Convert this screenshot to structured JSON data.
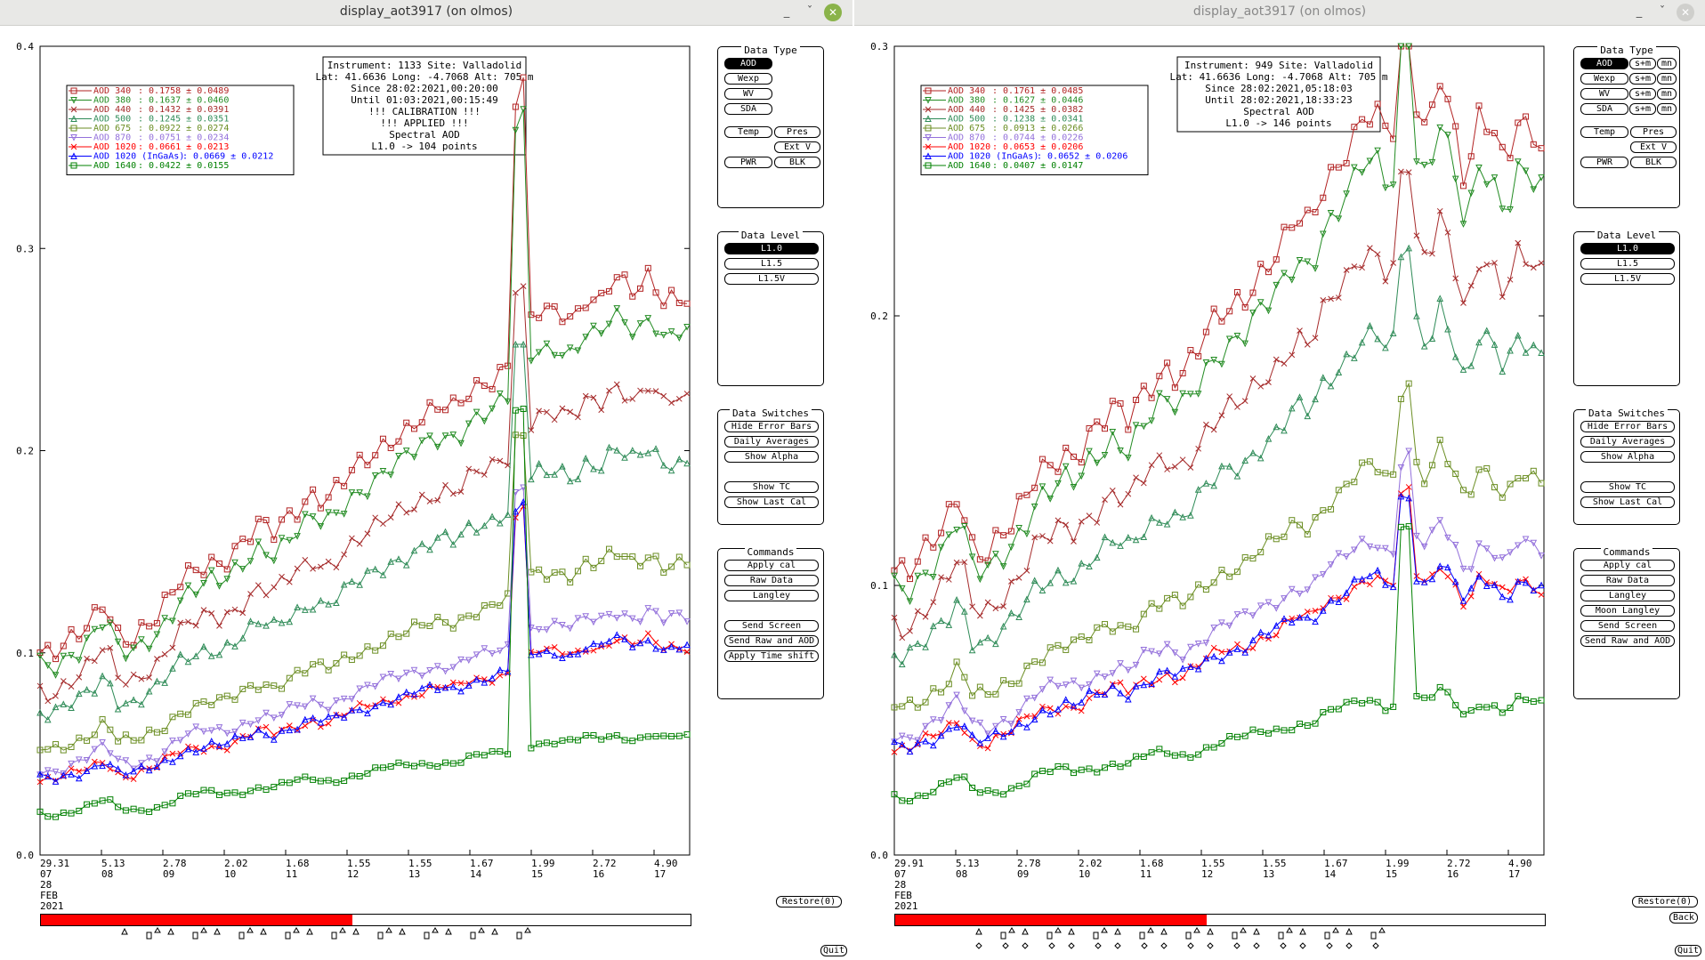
{
  "windows": [
    {
      "title": "display_aot3917 (on olmos)",
      "chart_data": {
        "type": "line",
        "ylim": [
          0.0,
          0.4
        ],
        "yticks": [
          "0.0",
          "0.1",
          "0.2",
          "0.3",
          "0.4"
        ],
        "xticks": [
          {
            "top": "29.31",
            "bottom": "07"
          },
          {
            "top": "5.13",
            "bottom": "08"
          },
          {
            "top": "2.78",
            "bottom": "09"
          },
          {
            "top": "2.02",
            "bottom": "10"
          },
          {
            "top": "1.68",
            "bottom": "11"
          },
          {
            "top": "1.55",
            "bottom": "12"
          },
          {
            "top": "1.55",
            "bottom": "13"
          },
          {
            "top": "1.67",
            "bottom": "14"
          },
          {
            "top": "1.99",
            "bottom": "15"
          },
          {
            "top": "2.72",
            "bottom": "16"
          },
          {
            "top": "4.90",
            "bottom": "17"
          }
        ],
        "date_label": [
          "28",
          "FEB",
          "2021"
        ],
        "info_lines": [
          "Instrument: 1133 Site: Valladolid",
          "Lat: 41.6636 Long: -4.7068 Alt: 705 m",
          "Since 28:02:2021,00:20:00",
          "Until 01:03:2021,00:15:49",
          "!!! CALIBRATION !!!",
          "!!!   APPLIED   !!!",
          "Spectral AOD",
          "L1.0 -> 104 points"
        ],
        "legend": [
          {
            "name": "AOD 340",
            "stat": ": 0.1758 ± 0.0489",
            "color": "#b22222"
          },
          {
            "name": "AOD 380",
            "stat": ": 0.1637 ± 0.0460",
            "color": "#228b22"
          },
          {
            "name": "AOD 440",
            "stat": ": 0.1432 ± 0.0391",
            "color": "#a52a2a"
          },
          {
            "name": "AOD 500",
            "stat": ": 0.1245 ± 0.0351",
            "color": "#2e8b57"
          },
          {
            "name": "AOD 675",
            "stat": ": 0.0922 ± 0.0274",
            "color": "#6b8e23"
          },
          {
            "name": "AOD 870",
            "stat": ": 0.0751 ± 0.0234",
            "color": "#9370db"
          },
          {
            "name": "AOD 1020",
            "stat": ": 0.0661 ± 0.0213",
            "color": "#ff0000"
          },
          {
            "name": "AOD 1020 (InGaAs)",
            "stat": ": 0.0669 ± 0.0212",
            "color": "#0000ff"
          },
          {
            "name": "AOD 1640",
            "stat": ": 0.0422 ± 0.0155",
            "color": "#008000"
          }
        ],
        "base_curve_x": [
          0,
          2,
          4,
          6,
          8,
          10,
          12,
          14,
          16,
          18,
          20,
          22,
          24,
          26,
          28,
          30,
          32,
          34,
          36,
          38,
          40,
          42,
          44,
          46,
          48,
          50,
          52,
          54,
          56,
          58,
          60,
          62,
          64,
          66,
          68,
          70,
          72,
          74,
          76,
          78,
          80,
          82,
          84,
          86,
          88,
          90,
          92,
          94,
          96,
          98,
          100
        ],
        "base_curve_y": [
          0.055,
          0.054,
          0.057,
          0.06,
          0.064,
          0.07,
          0.06,
          0.058,
          0.061,
          0.064,
          0.07,
          0.076,
          0.078,
          0.08,
          0.079,
          0.082,
          0.086,
          0.09,
          0.088,
          0.092,
          0.095,
          0.098,
          0.096,
          0.1,
          0.104,
          0.107,
          0.11,
          0.113,
          0.115,
          0.118,
          0.12,
          0.122,
          0.121,
          0.126,
          0.128,
          0.13,
          0.133,
          0.135,
          0.148,
          0.147,
          0.148,
          0.145,
          0.152,
          0.15,
          0.157,
          0.155,
          0.152,
          0.158,
          0.15,
          0.153,
          0.151
        ],
        "spike_x": 74,
        "spike_extra": 0.13,
        "scale": [
          1.82,
          1.7,
          1.48,
          1.28,
          0.95,
          0.77,
          0.68,
          0.68,
          0.38
        ],
        "band_markers": [
          "square",
          "tri-down",
          "x",
          "tri-up",
          "square",
          "tri-down",
          "x",
          "tri-up",
          "square"
        ]
      },
      "data_type": {
        "title": "Data Type",
        "buttons": [
          "AOD",
          "Wexp",
          "WV",
          "SDA",
          "Temp",
          "Pres",
          "Ext V",
          "PWR",
          "BLK"
        ]
      },
      "data_level": {
        "title": "Data Level",
        "buttons": [
          "L1.0",
          "L1.5",
          "L1.5V"
        ]
      },
      "data_switches": {
        "title": "Data Switches",
        "buttons": [
          "Hide Error Bars",
          "Daily Averages",
          "Show Alpha",
          "Show TC",
          "Show Last Cal"
        ]
      },
      "commands": {
        "title": "Commands",
        "buttons": [
          "Apply cal",
          "Raw Data",
          "Langley",
          "Send Screen",
          "Send Raw and AOD",
          "Apply Time shift"
        ]
      },
      "restore_label": "Restore(0)",
      "quit_label": "Quit",
      "progress": 0.48
    },
    {
      "title": "display_aot3917 (on olmos)",
      "chart_data": {
        "type": "line",
        "ylim": [
          0.0,
          0.3
        ],
        "yticks": [
          "0.0",
          "0.1",
          "0.2",
          "0.3"
        ],
        "xticks": [
          {
            "top": "29.91",
            "bottom": "07"
          },
          {
            "top": "5.13",
            "bottom": "08"
          },
          {
            "top": "2.78",
            "bottom": "09"
          },
          {
            "top": "2.02",
            "bottom": "10"
          },
          {
            "top": "1.68",
            "bottom": "11"
          },
          {
            "top": "1.55",
            "bottom": "12"
          },
          {
            "top": "1.55",
            "bottom": "13"
          },
          {
            "top": "1.67",
            "bottom": "14"
          },
          {
            "top": "1.99",
            "bottom": "15"
          },
          {
            "top": "2.72",
            "bottom": "16"
          },
          {
            "top": "4.90",
            "bottom": "17"
          }
        ],
        "date_label": [
          "28",
          "FEB",
          "2021"
        ],
        "info_lines": [
          "Instrument: 949 Site: Valladolid",
          "Lat: 41.6636 Long: -4.7068 Alt: 705 m",
          "Since 28:02:2021,05:18:03",
          "Until 28:02:2021,18:33:23",
          "Spectral AOD",
          "L1.0 -> 146 points"
        ],
        "legend": [
          {
            "name": "AOD 340",
            "stat": ": 0.1761 ± 0.0485",
            "color": "#b22222"
          },
          {
            "name": "AOD 380",
            "stat": ": 0.1627 ± 0.0446",
            "color": "#228b22"
          },
          {
            "name": "AOD 440",
            "stat": ": 0.1425 ± 0.0382",
            "color": "#a52a2a"
          },
          {
            "name": "AOD 500",
            "stat": ": 0.1238 ± 0.0341",
            "color": "#2e8b57"
          },
          {
            "name": "AOD 675",
            "stat": ": 0.0913 ± 0.0266",
            "color": "#6b8e23"
          },
          {
            "name": "AOD 870",
            "stat": ": 0.0744 ± 0.0226",
            "color": "#9370db"
          },
          {
            "name": "AOD 1020",
            "stat": ": 0.0653 ± 0.0206",
            "color": "#ff0000"
          },
          {
            "name": "AOD 1020 (InGaAs)",
            "stat": ": 0.0652 ± 0.0206",
            "color": "#0000ff"
          },
          {
            "name": "AOD 1640",
            "stat": ": 0.0407 ± 0.0147",
            "color": "#008000"
          }
        ],
        "base_curve_x": [
          0,
          2,
          4,
          6,
          8,
          10,
          12,
          14,
          16,
          18,
          20,
          22,
          24,
          26,
          28,
          30,
          32,
          34,
          36,
          38,
          40,
          42,
          44,
          46,
          48,
          50,
          52,
          54,
          56,
          58,
          60,
          62,
          64,
          66,
          68,
          70,
          72,
          74,
          76,
          78,
          80,
          82,
          84,
          86,
          88,
          90,
          92,
          94,
          96,
          98,
          100
        ],
        "base_curve_y": [
          0.058,
          0.057,
          0.06,
          0.064,
          0.068,
          0.075,
          0.063,
          0.061,
          0.064,
          0.067,
          0.072,
          0.078,
          0.08,
          0.082,
          0.081,
          0.085,
          0.088,
          0.091,
          0.089,
          0.094,
          0.097,
          0.099,
          0.097,
          0.101,
          0.106,
          0.11,
          0.112,
          0.114,
          0.118,
          0.121,
          0.125,
          0.13,
          0.128,
          0.136,
          0.14,
          0.145,
          0.15,
          0.152,
          0.146,
          0.15,
          0.155,
          0.147,
          0.16,
          0.15,
          0.136,
          0.15,
          0.148,
          0.14,
          0.15,
          0.148,
          0.145
        ],
        "spike_x": 79,
        "spike_extra": 0.05,
        "scale": [
          1.82,
          1.7,
          1.48,
          1.28,
          0.95,
          0.77,
          0.68,
          0.68,
          0.38
        ],
        "band_markers": [
          "square",
          "tri-down",
          "x",
          "tri-up",
          "square",
          "tri-down",
          "x",
          "tri-up",
          "square"
        ]
      },
      "data_type": {
        "title": "Data Type",
        "buttons": [
          "AOD",
          "Wexp",
          "WV",
          "SDA",
          "Temp",
          "Pres",
          "Ext V",
          "PWR",
          "BLK"
        ],
        "side_buttons": [
          "s+m",
          "mn",
          "s+m",
          "mn",
          "s+m",
          "mn",
          "s+m",
          "mn"
        ]
      },
      "data_level": {
        "title": "Data Level",
        "buttons": [
          "L1.0",
          "L1.5",
          "L1.5V"
        ]
      },
      "data_switches": {
        "title": "Data Switches",
        "buttons": [
          "Hide Error Bars",
          "Daily Averages",
          "Show Alpha",
          "Show TC",
          "Show Last Cal"
        ]
      },
      "commands": {
        "title": "Commands",
        "buttons": [
          "Apply cal",
          "Raw Data",
          "Langley",
          "Moon Langley",
          "Send Screen",
          "Send Raw and AOD"
        ]
      },
      "restore_label": "Restore(0)",
      "back_label": "Back",
      "quit_label": "Quit",
      "progress": 0.48
    }
  ]
}
